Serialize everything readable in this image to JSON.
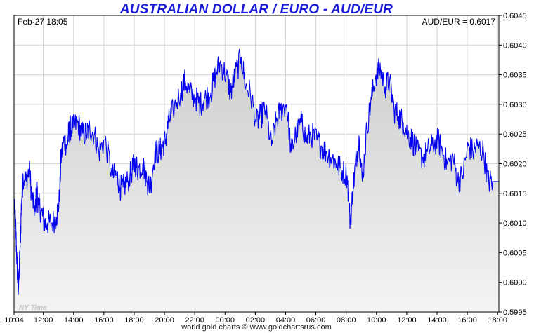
{
  "chart_data": {
    "type": "area",
    "title": "AUSTRALIAN DOLLAR / EURO - AUD/EUR",
    "date_label": "Feb-27  18:05",
    "quote_label": "AUD/EUR = 0.6017",
    "watermark": "NY Time",
    "footer": "world gold charts © www.goldchartsrus.com",
    "x_tick_labels": [
      "10:04",
      "12:00",
      "14:00",
      "16:00",
      "18:00",
      "20:00",
      "22:00",
      "00:00",
      "02:00",
      "04:00",
      "06:00",
      "08:00",
      "10:00",
      "12:00",
      "14:00",
      "16:00",
      "18:00"
    ],
    "x_tick_hours": [
      0,
      1.933,
      3.933,
      5.933,
      7.933,
      9.933,
      11.933,
      13.933,
      15.933,
      17.933,
      19.933,
      21.933,
      23.933,
      25.933,
      27.933,
      29.933,
      31.933
    ],
    "y_tick_labels": [
      "0.5995",
      "0.6000",
      "0.6005",
      "0.6010",
      "0.6015",
      "0.6020",
      "0.6025",
      "0.6030",
      "0.6035",
      "0.6040",
      "0.6045"
    ],
    "ylim": [
      0.5995,
      0.6045
    ],
    "xlim_hours": [
      0,
      32.017
    ],
    "grid": true,
    "line_color": "#0000ee",
    "fill_color": "#d8d8d8",
    "series": [
      {
        "hours": [
          0,
          0.1,
          0.2,
          0.25,
          0.3,
          0.4,
          0.5,
          0.6,
          0.8,
          1.0,
          1.2,
          1.4,
          1.5,
          1.6,
          1.8,
          2.0,
          2.2,
          2.5,
          2.8,
          3.0,
          3.1,
          3.3,
          3.5,
          3.6,
          3.7,
          3.9,
          4.2,
          4.5,
          4.8,
          5.0,
          5.3,
          5.6,
          6.0,
          6.5,
          6.8,
          7.0,
          7.2,
          7.5,
          7.8,
          8.0,
          8.2,
          8.5,
          8.8,
          9.0,
          9.3,
          9.6,
          9.8,
          10.0,
          10.2,
          10.5,
          11.0,
          11.3,
          11.6,
          12.0,
          12.3,
          12.6,
          13.0,
          13.3,
          13.6,
          14.0,
          14.3,
          14.6,
          15.0,
          15.3,
          15.6,
          16.0,
          16.3,
          16.6,
          17.0,
          17.3,
          17.6,
          18.0,
          18.3,
          18.6,
          19.0,
          19.3,
          19.6,
          20.0,
          20.3,
          20.6,
          21.0,
          21.3,
          21.6,
          22.0,
          22.2,
          22.4,
          22.6,
          22.8,
          23.0,
          23.3,
          23.6,
          23.9,
          24.2,
          24.5,
          24.8,
          25.1,
          25.4,
          25.7,
          26.0,
          26.3,
          26.6,
          27.0,
          27.3,
          27.6,
          28.0,
          28.3,
          28.6,
          29.0,
          29.3,
          29.6,
          30.0,
          30.3,
          30.6,
          31.0,
          31.3,
          31.6,
          32.017
        ],
        "values": [
          0.6013,
          0.601,
          0.6003,
          0.6,
          0.5999,
          0.6006,
          0.6014,
          0.6018,
          0.6017,
          0.6019,
          0.6014,
          0.6012,
          0.6016,
          0.6013,
          0.6012,
          0.601,
          0.601,
          0.601,
          0.6011,
          0.6014,
          0.6021,
          0.6024,
          0.6023,
          0.6025,
          0.6026,
          0.6026,
          0.6027,
          0.6025,
          0.6025,
          0.6026,
          0.6025,
          0.6022,
          0.6024,
          0.6018,
          0.6018,
          0.6016,
          0.6016,
          0.6017,
          0.6019,
          0.602,
          0.6019,
          0.602,
          0.6017,
          0.6016,
          0.6022,
          0.6022,
          0.6023,
          0.6024,
          0.6027,
          0.6029,
          0.6032,
          0.6034,
          0.6032,
          0.6031,
          0.603,
          0.6031,
          0.6032,
          0.6035,
          0.6037,
          0.6035,
          0.6032,
          0.6035,
          0.6038,
          0.6033,
          0.6032,
          0.6027,
          0.6028,
          0.6029,
          0.6023,
          0.6027,
          0.6029,
          0.603,
          0.6022,
          0.6025,
          0.6027,
          0.6024,
          0.6025,
          0.6024,
          0.6023,
          0.6022,
          0.6021,
          0.602,
          0.6019,
          0.6018,
          0.601,
          0.6016,
          0.6021,
          0.6024,
          0.6017,
          0.6026,
          0.6031,
          0.6035,
          0.6036,
          0.6033,
          0.6034,
          0.6029,
          0.6028,
          0.6027,
          0.6025,
          0.6024,
          0.6022,
          0.6021,
          0.6022,
          0.6023,
          0.6024,
          0.6022,
          0.602,
          0.6021,
          0.6017,
          0.6018,
          0.6023,
          0.6022,
          0.6023,
          0.6022,
          0.6017,
          0.6017,
          0.6017
        ]
      }
    ]
  }
}
